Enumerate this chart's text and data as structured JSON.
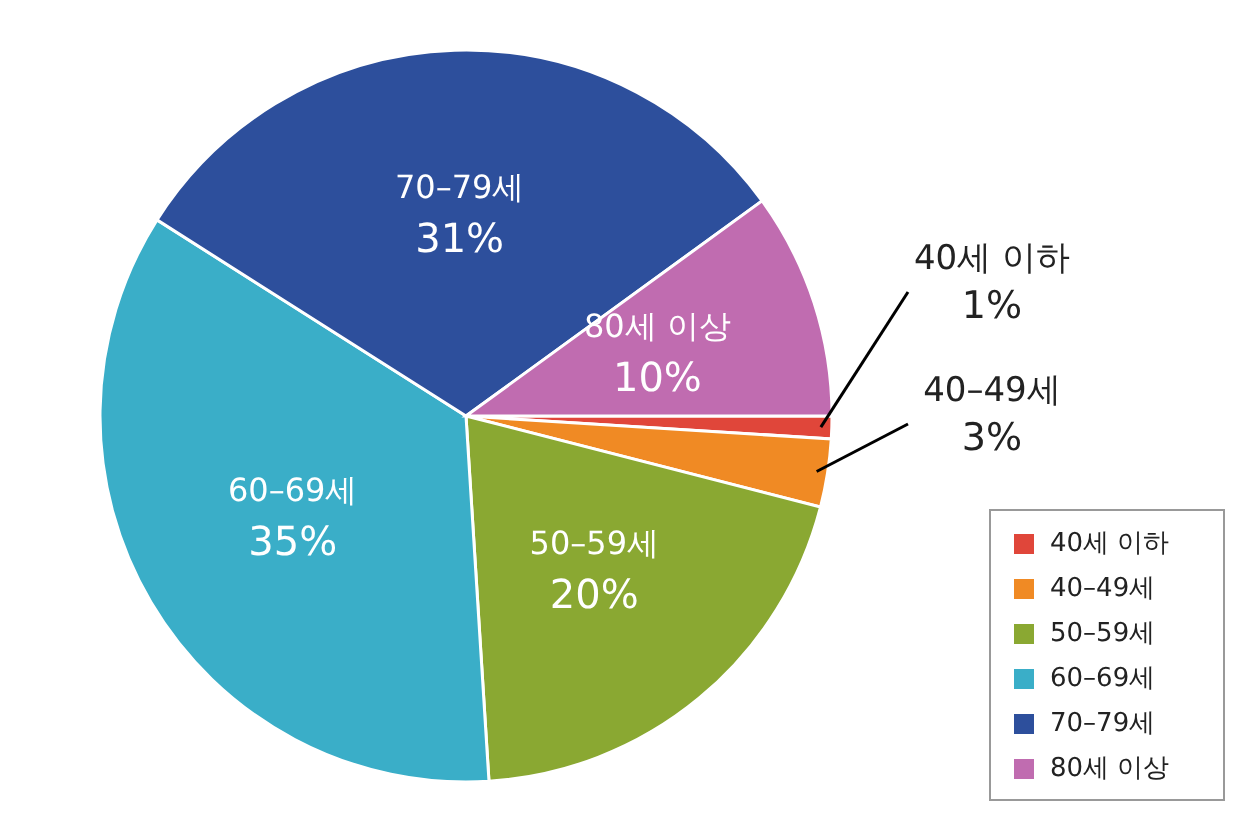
{
  "chart_data": {
    "type": "pie",
    "categories": [
      "40세 이하",
      "40–49세",
      "50–59세",
      "60–69세",
      "70–79세",
      "80세 이상"
    ],
    "values": [
      1,
      3,
      20,
      35,
      31,
      10
    ],
    "colors": [
      "#e0463a",
      "#f08a24",
      "#8aa832",
      "#3aaec8",
      "#2d4f9c",
      "#c06cb0"
    ],
    "value_labels": [
      "1%",
      "3%",
      "20%",
      "35%",
      "31%",
      "10%"
    ],
    "legend": "bottom right"
  }
}
